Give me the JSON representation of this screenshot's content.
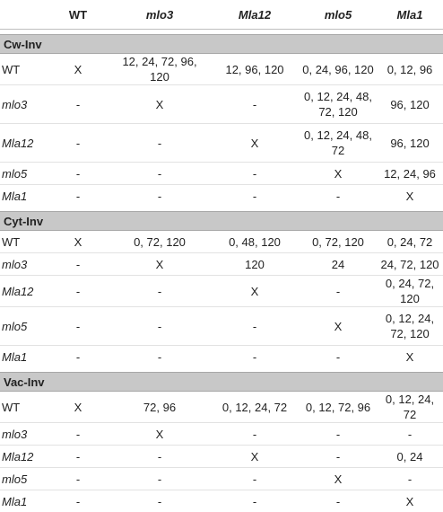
{
  "header": {
    "corner": "",
    "columns": [
      {
        "label": "WT",
        "italic": false
      },
      {
        "label": "mlo3",
        "italic": true
      },
      {
        "label": "Mla12",
        "italic": true
      },
      {
        "label": "mlo5",
        "italic": true
      },
      {
        "label": "Mla1",
        "italic": true
      }
    ]
  },
  "sections": [
    {
      "title": "Cw-Inv",
      "rows": [
        {
          "label": "WT",
          "italic": false,
          "tall": false,
          "cells": [
            "X",
            "12, 24, 72, 96, 120",
            "12, 96, 120",
            "0, 24, 96, 120",
            "0, 12, 96"
          ]
        },
        {
          "label": "mlo3",
          "italic": true,
          "tall": true,
          "cells": [
            "-",
            "X",
            "-",
            "0, 12, 24, 48, 72, 120",
            "96, 120"
          ]
        },
        {
          "label": "Mla12",
          "italic": true,
          "tall": true,
          "cells": [
            "-",
            "-",
            "X",
            "0, 12, 24, 48, 72",
            "96, 120"
          ]
        },
        {
          "label": "mlo5",
          "italic": true,
          "tall": false,
          "cells": [
            "-",
            "-",
            "-",
            "X",
            "12, 24, 96"
          ]
        },
        {
          "label": "Mla1",
          "italic": true,
          "tall": false,
          "cells": [
            "-",
            "-",
            "-",
            "-",
            "X"
          ]
        }
      ]
    },
    {
      "title": "Cyt-Inv",
      "rows": [
        {
          "label": "WT",
          "italic": false,
          "tall": false,
          "cells": [
            "X",
            "0, 72, 120",
            "0, 48, 120",
            "0, 72, 120",
            "0, 24, 72"
          ]
        },
        {
          "label": "mlo3",
          "italic": true,
          "tall": false,
          "cells": [
            "-",
            "X",
            "120",
            "24",
            "24, 72, 120"
          ]
        },
        {
          "label": "Mla12",
          "italic": true,
          "tall": false,
          "cells": [
            "-",
            "-",
            "X",
            "-",
            "0, 24, 72, 120"
          ]
        },
        {
          "label": "mlo5",
          "italic": true,
          "tall": true,
          "cells": [
            "-",
            "-",
            "-",
            "X",
            "0, 12, 24, 72, 120"
          ]
        },
        {
          "label": "Mla1",
          "italic": true,
          "tall": false,
          "cells": [
            "-",
            "-",
            "-",
            "-",
            "X"
          ]
        }
      ]
    },
    {
      "title": "Vac-Inv",
      "rows": [
        {
          "label": "WT",
          "italic": false,
          "tall": false,
          "cells": [
            "X",
            "72, 96",
            "0, 12, 24, 72",
            "0, 12, 72, 96",
            "0, 12, 24, 72"
          ]
        },
        {
          "label": "mlo3",
          "italic": true,
          "tall": false,
          "cells": [
            "-",
            "X",
            "-",
            "-",
            "-"
          ]
        },
        {
          "label": "Mla12",
          "italic": true,
          "tall": false,
          "cells": [
            "-",
            "-",
            "X",
            "-",
            "0, 24"
          ]
        },
        {
          "label": "mlo5",
          "italic": true,
          "tall": false,
          "cells": [
            "-",
            "-",
            "-",
            "X",
            "-"
          ]
        },
        {
          "label": "Mla1",
          "italic": true,
          "tall": false,
          "cells": [
            "-",
            "-",
            "-",
            "-",
            "X"
          ]
        }
      ]
    }
  ]
}
